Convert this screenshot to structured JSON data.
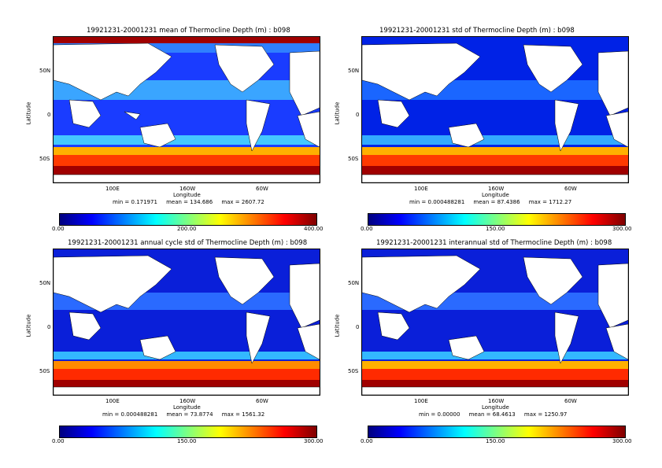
{
  "colormap": [
    "#00007f",
    "#0000ff",
    "#007fff",
    "#00ffff",
    "#7fff7f",
    "#ffff00",
    "#ff7f00",
    "#ff0000",
    "#7f0000"
  ],
  "land_color": "#ffffff",
  "panels": [
    {
      "title": "19921231-20001231 mean of Thermocline Depth (m) : b098",
      "ylabel": "Latitude",
      "xlabel": "Longitude",
      "lat_ticks": [
        "50N",
        "0",
        "50S"
      ],
      "lon_ticks": [
        "100E",
        "160W",
        "60W"
      ],
      "stats": {
        "min": "min = 0.171971",
        "mean": "mean = 134.686",
        "max": "max = 2607.72"
      },
      "cbar_ticks": [
        "0.00",
        "200.00",
        "400.00"
      ]
    },
    {
      "title": "19921231-20001231 std of Thermocline Depth (m) : b098",
      "ylabel": "Latitude",
      "xlabel": "Longitude",
      "lat_ticks": [
        "50N",
        "0",
        "50S"
      ],
      "lon_ticks": [
        "100E",
        "160W",
        "60W"
      ],
      "stats": {
        "min": "min = 0.000488281",
        "mean": "mean = 87.4386",
        "max": "max = 1712.27"
      },
      "cbar_ticks": [
        "0.00",
        "150.00",
        "300.00"
      ]
    },
    {
      "title": "19921231-20001231 annual cycle std of Thermocline Depth (m) : b098",
      "ylabel": "Latitude",
      "xlabel": "Longitude",
      "lat_ticks": [
        "50N",
        "0",
        "50S"
      ],
      "lon_ticks": [
        "100E",
        "160W",
        "60W"
      ],
      "stats": {
        "min": "min = 0.000488281",
        "mean": "mean = 73.8774",
        "max": "max = 1561.32"
      },
      "cbar_ticks": [
        "0.00",
        "150.00",
        "300.00"
      ]
    },
    {
      "title": "19921231-20001231 interannual std of Thermocline Depth (m) : b098",
      "ylabel": "Latitude",
      "xlabel": "Longitude",
      "lat_ticks": [
        "50N",
        "0",
        "50S"
      ],
      "lon_ticks": [
        "100E",
        "160W",
        "60W"
      ],
      "stats": {
        "min": "min = 0.00000",
        "mean": "mean = 68.4613",
        "max": "max = 1250.97"
      },
      "cbar_ticks": [
        "0.00",
        "150.00",
        "300.00"
      ]
    }
  ]
}
